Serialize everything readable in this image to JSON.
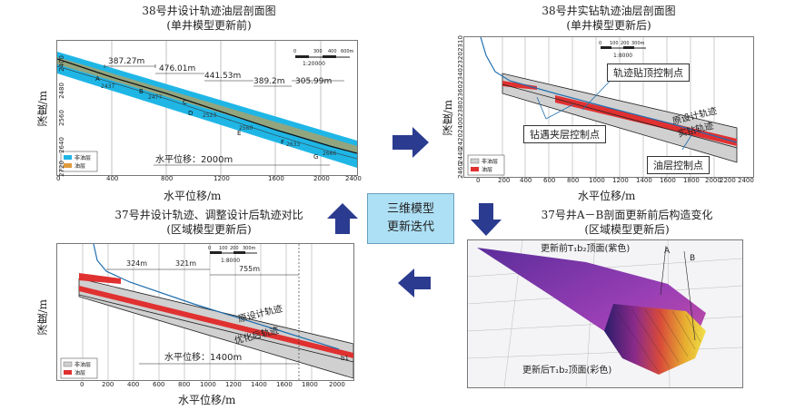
{
  "panels": {
    "top_left": {
      "title_line1": "38号井设计轨迹油层剖面图",
      "title_line2": "(单井模型更新前)",
      "y_axis": "深度/m",
      "x_axis": "水平位移/m",
      "x_ticks": [
        "0",
        "400",
        "800",
        "1200",
        "1600",
        "2000",
        "2400"
      ],
      "y_ticks": [
        "2400",
        "2480",
        "2560",
        "2640",
        "2720"
      ],
      "segments": [
        "387.27m",
        "476.01m",
        "441.53m",
        "389.2m",
        "305.99m"
      ],
      "annotation": "水平位移：2000m",
      "scale": "1:20000",
      "scale_ticks": [
        "0",
        "300",
        "400",
        "600m"
      ],
      "legend": [
        "非油层",
        "油层"
      ],
      "points": [
        "A",
        "B",
        "C",
        "D",
        "E",
        "F",
        "G"
      ],
      "depth_labels": [
        "2437",
        "2477",
        "2523",
        "2560",
        "2633",
        "2666"
      ]
    },
    "top_right": {
      "title_line1": "38号井实钻轨迹油层剖面图",
      "title_line2": "(单井模型更新后)",
      "y_axis": "深度/m",
      "x_axis": "水平位移/m",
      "x_ticks": [
        "0",
        "200",
        "400",
        "600",
        "800",
        "1000",
        "1200",
        "1400",
        "1600",
        "1800",
        "2000",
        "2200",
        "2400"
      ],
      "y_ticks": [
        "2310",
        "2320",
        "2340",
        "2360",
        "2380",
        "2400",
        "2420",
        "2440",
        "2460"
      ],
      "scale": "1:8000",
      "scale_ticks": [
        "0",
        "100",
        "200",
        "300m"
      ],
      "callouts": [
        "轨迹贴顶控制点",
        "钻遇夹层控制点",
        "油层控制点"
      ],
      "inline_labels": [
        "原设计轨迹",
        "实钻轨迹"
      ],
      "legend": [
        "非油层",
        "油层"
      ]
    },
    "bottom_left": {
      "title_line1": "37号井设计轨迹、调整设计后轨迹对比",
      "title_line2": "(区域模型更新后)",
      "y_axis": "深度/m",
      "x_axis": "水平位移/m",
      "x_ticks": [
        "0",
        "200",
        "400",
        "600",
        "800",
        "1000",
        "1200",
        "1400",
        "1600",
        "1800",
        "2000"
      ],
      "segments": [
        "324m",
        "321m",
        "755m"
      ],
      "annotation": "水平位移：1400m",
      "scale": "1:8000",
      "scale_ticks": [
        "0",
        "100",
        "200",
        "300m"
      ],
      "inline_labels": [
        "原设计轨迹",
        "优化后轨迹"
      ],
      "end_point": "b1",
      "legend": [
        "非油层",
        "油层"
      ]
    },
    "bottom_right": {
      "title_line1": "37号井A－B剖面更新前后构造变化",
      "title_line2": "(区域模型更新后)",
      "top_label": "更新前T₁b₂顶面(紫色)",
      "bottom_label": "更新后T₁b₂顶面(彩色)",
      "point_a": "A",
      "point_b": "B"
    }
  },
  "center": {
    "line1": "三维模型",
    "line2": "更新迭代"
  },
  "colors": {
    "arrow": "#2b3b8f",
    "cyan": "#1fb6e6",
    "oil": "#e03030",
    "nonoil": "#d0d0d0",
    "center_bg": "#aee0f5"
  }
}
